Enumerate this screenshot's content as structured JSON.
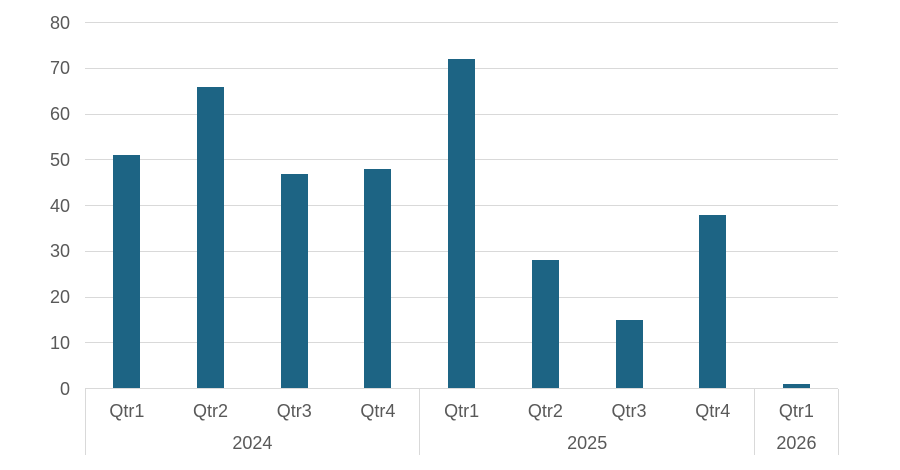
{
  "chart_data": {
    "type": "bar",
    "title": "",
    "groups": [
      {
        "year": "2024",
        "quarters": [
          "Qtr1",
          "Qtr2",
          "Qtr3",
          "Qtr4"
        ],
        "values": [
          51,
          66,
          47,
          48
        ]
      },
      {
        "year": "2025",
        "quarters": [
          "Qtr1",
          "Qtr2",
          "Qtr3",
          "Qtr4"
        ],
        "values": [
          72,
          28,
          15,
          38
        ]
      },
      {
        "year": "2026",
        "quarters": [
          "Qtr1"
        ],
        "values": [
          1
        ]
      }
    ],
    "categories_flat": [
      "Qtr1",
      "Qtr2",
      "Qtr3",
      "Qtr4",
      "Qtr1",
      "Qtr2",
      "Qtr3",
      "Qtr4",
      "Qtr1"
    ],
    "values_flat": [
      51,
      66,
      47,
      48,
      72,
      28,
      15,
      38,
      1
    ],
    "xlabel": "",
    "ylabel": "",
    "ylim": [
      0,
      80
    ],
    "yticks": [
      0,
      10,
      20,
      30,
      40,
      50,
      60,
      70,
      80
    ],
    "grid": true,
    "legend": "none",
    "colors": {
      "bar": "#1d6484",
      "gridline": "#d9d9d9",
      "axis_line": "#d9d9d9",
      "divider_line": "#d9d9d9",
      "tick_label": "#595959",
      "background": "#ffffff"
    }
  }
}
